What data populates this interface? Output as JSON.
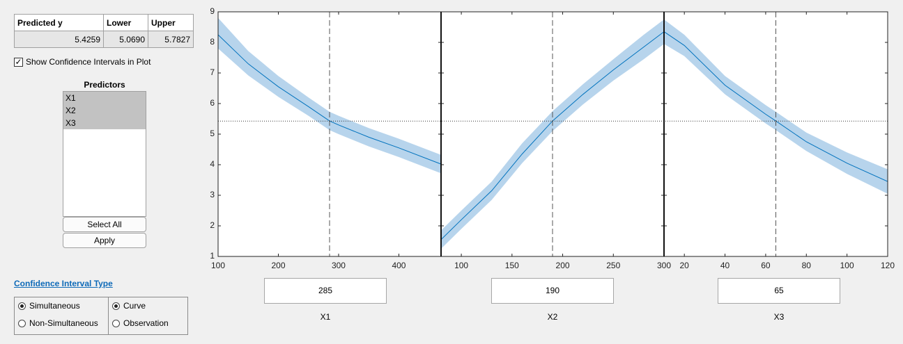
{
  "table": {
    "headers": [
      "Predicted y",
      "Lower",
      "Upper"
    ],
    "rows": [
      [
        "5.4259",
        "5.0690",
        "5.7827"
      ]
    ]
  },
  "checkbox": {
    "label": "Show Confidence Intervals in Plot",
    "checked": true
  },
  "predictors": {
    "title": "Predictors",
    "items": [
      {
        "label": "X1",
        "selected": true
      },
      {
        "label": "X2",
        "selected": true
      },
      {
        "label": "X3",
        "selected": true
      }
    ]
  },
  "buttons": [
    "Select All",
    "Apply"
  ],
  "ci_type": {
    "title": "Confidence Interval Type",
    "groups": [
      {
        "options": [
          "Simultaneous",
          "Non-Simultaneous"
        ],
        "selected": 0
      },
      {
        "options": [
          "Curve",
          "Observation"
        ],
        "selected": 0
      }
    ]
  },
  "chart_data": {
    "type": "line",
    "ylim": [
      1,
      9
    ],
    "yticks": [
      1,
      2,
      3,
      4,
      5,
      6,
      7,
      8,
      9
    ],
    "y_current": 5.4259,
    "color": "#0072bd",
    "band_color": "#b7d4ec",
    "panels": [
      {
        "xlabel": "X1",
        "xlim": [
          100,
          470
        ],
        "xticks": [
          100,
          200,
          300,
          400
        ],
        "current": 285,
        "x": [
          100,
          150,
          200,
          250,
          285,
          300,
          350,
          400,
          470
        ],
        "values": [
          8.25,
          7.3,
          6.55,
          5.9,
          5.43,
          5.3,
          4.9,
          4.55,
          4.02
        ],
        "lower": [
          7.8,
          6.92,
          6.22,
          5.6,
          5.13,
          5.0,
          4.6,
          4.25,
          3.72
        ],
        "upper": [
          8.8,
          7.72,
          6.9,
          6.2,
          5.73,
          5.6,
          5.2,
          4.85,
          4.32
        ]
      },
      {
        "xlabel": "X2",
        "xlim": [
          80,
          300
        ],
        "xticks": [
          100,
          150,
          200,
          250,
          300
        ],
        "current": 190,
        "x": [
          80,
          100,
          130,
          160,
          190,
          220,
          250,
          280,
          300
        ],
        "values": [
          1.55,
          2.2,
          3.15,
          4.35,
          5.43,
          6.3,
          7.1,
          7.85,
          8.35
        ],
        "lower": [
          1.25,
          1.9,
          2.85,
          4.05,
          5.1,
          5.97,
          6.75,
          7.45,
          7.95
        ],
        "upper": [
          1.85,
          2.5,
          3.45,
          4.7,
          5.75,
          6.63,
          7.45,
          8.25,
          8.75
        ]
      },
      {
        "xlabel": "X3",
        "xlim": [
          10,
          120
        ],
        "xticks": [
          20,
          40,
          60,
          80,
          100,
          120
        ],
        "current": 65,
        "x": [
          10,
          20,
          40,
          60,
          65,
          80,
          100,
          120
        ],
        "values": [
          8.35,
          7.9,
          6.6,
          5.65,
          5.43,
          4.75,
          4.05,
          3.45
        ],
        "lower": [
          7.95,
          7.55,
          6.3,
          5.35,
          5.13,
          4.45,
          3.7,
          3.05
        ],
        "upper": [
          8.75,
          8.25,
          6.9,
          5.95,
          5.73,
          5.05,
          4.4,
          3.85
        ]
      }
    ]
  }
}
